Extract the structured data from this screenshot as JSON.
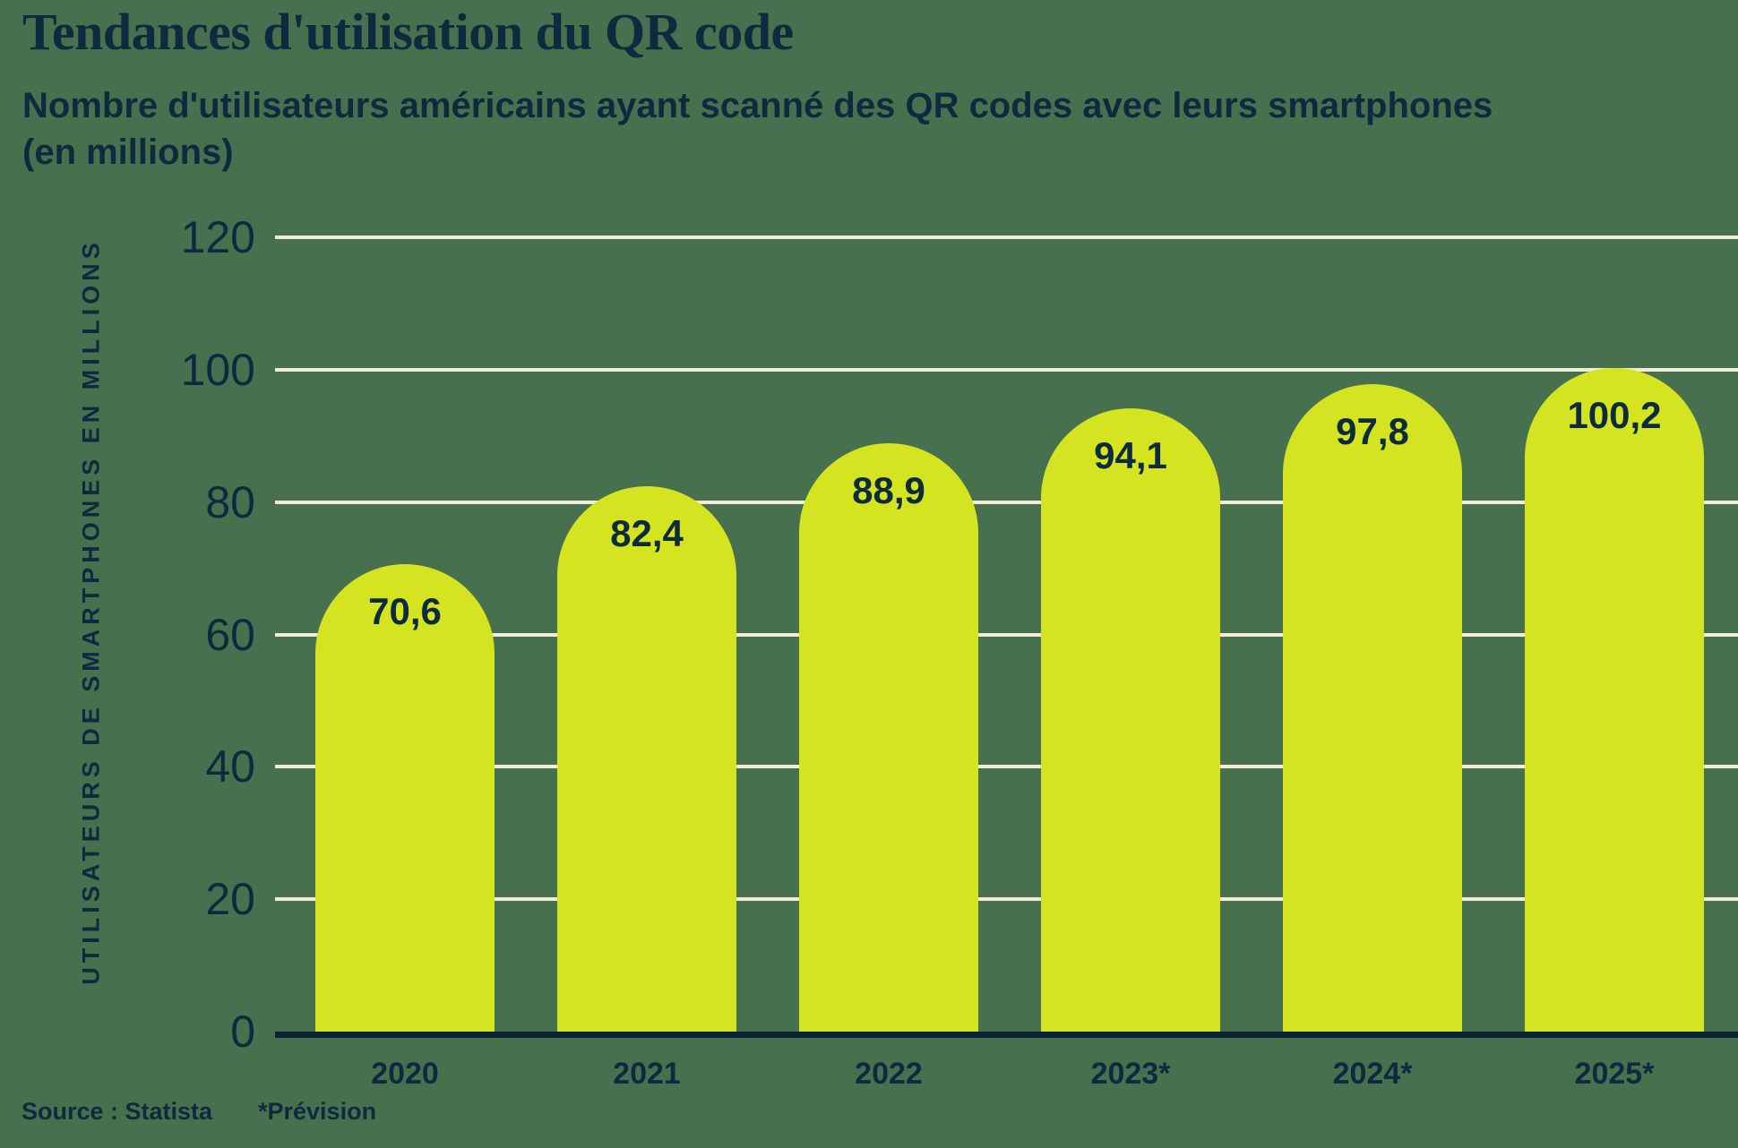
{
  "header": {
    "title": "Tendances d'utilisation du QR code",
    "subtitle": "Nombre d'utilisateurs américains ayant scanné des QR codes avec leurs smartphones",
    "subtitle_unit": "(en millions)"
  },
  "chart_data": {
    "type": "bar",
    "title": "Tendances d'utilisation du QR code",
    "subtitle": "Nombre d'utilisateurs américains ayant scanné des QR codes avec leurs smartphones (en millions)",
    "categories": [
      "2020",
      "2021",
      "2022",
      "2023*",
      "2024*",
      "2025*"
    ],
    "values": [
      70.6,
      82.4,
      88.9,
      94.1,
      97.8,
      100.2
    ],
    "value_labels": [
      "70,6",
      "82,4",
      "88,9",
      "94,1",
      "97,8",
      "100,2"
    ],
    "xlabel": "",
    "ylabel": "UTILISATEURS DE SMARTPHONES EN MILLIONS",
    "yticks": [
      0,
      20,
      40,
      60,
      80,
      100,
      120
    ],
    "ylim": [
      0,
      120
    ],
    "grid": true,
    "legend": false
  },
  "footer": {
    "source": "Source : Statista",
    "note": "*Prévision"
  },
  "colors": {
    "background": "#47704F",
    "bar": "#D5E420",
    "gridline": "#F1ECD3",
    "text": "#0C2B3E",
    "axis": "#0A2335"
  }
}
